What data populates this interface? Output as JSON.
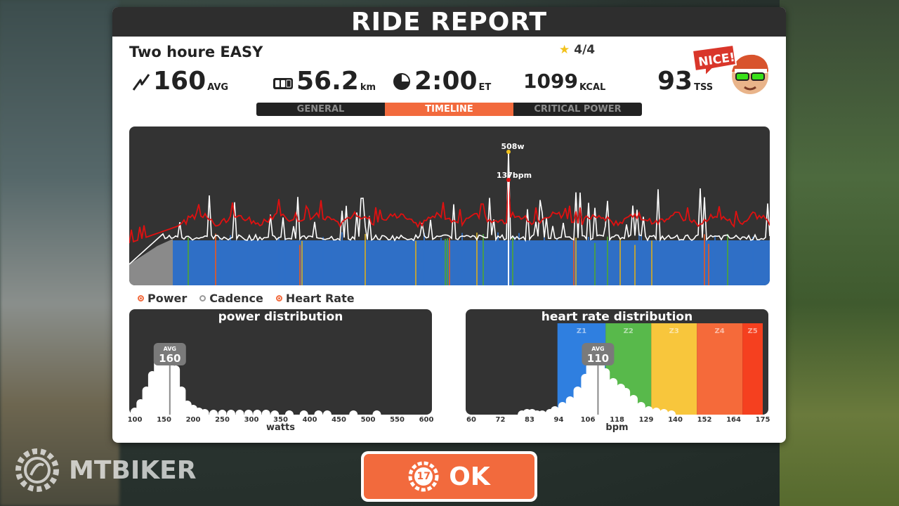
{
  "header": {
    "title": "RIDE REPORT"
  },
  "workout": {
    "name": "Two houre EASY",
    "stars": "4/4"
  },
  "stats": {
    "power": {
      "value": "160",
      "unit": "AVG"
    },
    "distance": {
      "value": "56.2",
      "unit": "km"
    },
    "time": {
      "value": "2:00",
      "unit": "ET"
    },
    "energy": {
      "value": "1099",
      "unit": "KCAL"
    },
    "tss": {
      "value": "93",
      "unit": "TSS"
    }
  },
  "badge": {
    "text": "NICE!"
  },
  "tabs": [
    {
      "label": "GENERAL",
      "active": false
    },
    {
      "label": "TIMELINE",
      "active": true
    },
    {
      "label": "CRITICAL POWER",
      "active": false
    }
  ],
  "timeline": {
    "peak_power": "508w",
    "peak_hr": "137bpm"
  },
  "legend": [
    {
      "label": "Power",
      "checked": true
    },
    {
      "label": "Cadence",
      "checked": false
    },
    {
      "label": "Heart Rate",
      "checked": true
    }
  ],
  "power_distribution": {
    "title": "power distribution",
    "avg_label": "AVG",
    "avg_value": "160",
    "avg": 160,
    "ticks": [
      "100",
      "150",
      "200",
      "250",
      "300",
      "350",
      "400",
      "450",
      "500",
      "550",
      "600"
    ],
    "xlabel": "watts",
    "range": [
      100,
      600
    ],
    "bins": [
      {
        "x": 100,
        "v": 0.1
      },
      {
        "x": 110,
        "v": 0.22
      },
      {
        "x": 120,
        "v": 0.4
      },
      {
        "x": 130,
        "v": 0.62
      },
      {
        "x": 140,
        "v": 0.85
      },
      {
        "x": 150,
        "v": 0.92
      },
      {
        "x": 160,
        "v": 0.9
      },
      {
        "x": 170,
        "v": 0.7
      },
      {
        "x": 180,
        "v": 0.4
      },
      {
        "x": 190,
        "v": 0.2
      },
      {
        "x": 200,
        "v": 0.14
      },
      {
        "x": 210,
        "v": 0.1
      },
      {
        "x": 220,
        "v": 0.08
      },
      {
        "x": 235,
        "v": 0.07
      },
      {
        "x": 250,
        "v": 0.07
      },
      {
        "x": 265,
        "v": 0.07
      },
      {
        "x": 280,
        "v": 0.07
      },
      {
        "x": 295,
        "v": 0.07
      },
      {
        "x": 310,
        "v": 0.07
      },
      {
        "x": 325,
        "v": 0.07
      },
      {
        "x": 340,
        "v": 0.06
      },
      {
        "x": 365,
        "v": 0.06
      },
      {
        "x": 390,
        "v": 0.06
      },
      {
        "x": 415,
        "v": 0.06
      },
      {
        "x": 430,
        "v": 0.06
      },
      {
        "x": 475,
        "v": 0.06
      },
      {
        "x": 515,
        "v": 0.06
      }
    ]
  },
  "hr_distribution": {
    "title": "heart rate distribution",
    "avg_label": "AVG",
    "avg_value": "110",
    "avg": 110,
    "ticks": [
      "60",
      "72",
      "83",
      "94",
      "106",
      "118",
      "129",
      "140",
      "152",
      "164",
      "175"
    ],
    "xlabel": "bpm",
    "range": [
      60,
      175
    ],
    "zones": [
      {
        "label": "Z1",
        "from": 94,
        "to": 113,
        "color": "#2f7fe0"
      },
      {
        "label": "Z2",
        "from": 113,
        "to": 131,
        "color": "#58b94b"
      },
      {
        "label": "Z3",
        "from": 131,
        "to": 149,
        "color": "#f8c63c"
      },
      {
        "label": "Z4",
        "from": 149,
        "to": 167,
        "color": "#f56a3a"
      },
      {
        "label": "Z5",
        "from": 167,
        "to": 175,
        "color": "#f5401f"
      }
    ],
    "bins": [
      {
        "x": 80,
        "v": 0.06
      },
      {
        "x": 82,
        "v": 0.08
      },
      {
        "x": 84,
        "v": 0.08
      },
      {
        "x": 86,
        "v": 0.06
      },
      {
        "x": 88,
        "v": 0.06
      },
      {
        "x": 91,
        "v": 0.08
      },
      {
        "x": 93,
        "v": 0.12
      },
      {
        "x": 96,
        "v": 0.18
      },
      {
        "x": 99,
        "v": 0.26
      },
      {
        "x": 102,
        "v": 0.4
      },
      {
        "x": 105,
        "v": 0.58
      },
      {
        "x": 107,
        "v": 0.74
      },
      {
        "x": 109,
        "v": 0.82
      },
      {
        "x": 111,
        "v": 0.8
      },
      {
        "x": 113,
        "v": 0.66
      },
      {
        "x": 116,
        "v": 0.52
      },
      {
        "x": 119,
        "v": 0.44
      },
      {
        "x": 121,
        "v": 0.38
      },
      {
        "x": 124,
        "v": 0.28
      },
      {
        "x": 127,
        "v": 0.18
      },
      {
        "x": 130,
        "v": 0.12
      },
      {
        "x": 133,
        "v": 0.1
      },
      {
        "x": 136,
        "v": 0.08
      },
      {
        "x": 139,
        "v": 0.06
      }
    ]
  },
  "ok_button": {
    "label": "OK",
    "countdown": "17"
  },
  "watermark": {
    "text": "MTBIKER"
  },
  "colors": {
    "accent": "#f26a3d",
    "hr_line": "#e01010",
    "power_line": "#ffffff"
  }
}
